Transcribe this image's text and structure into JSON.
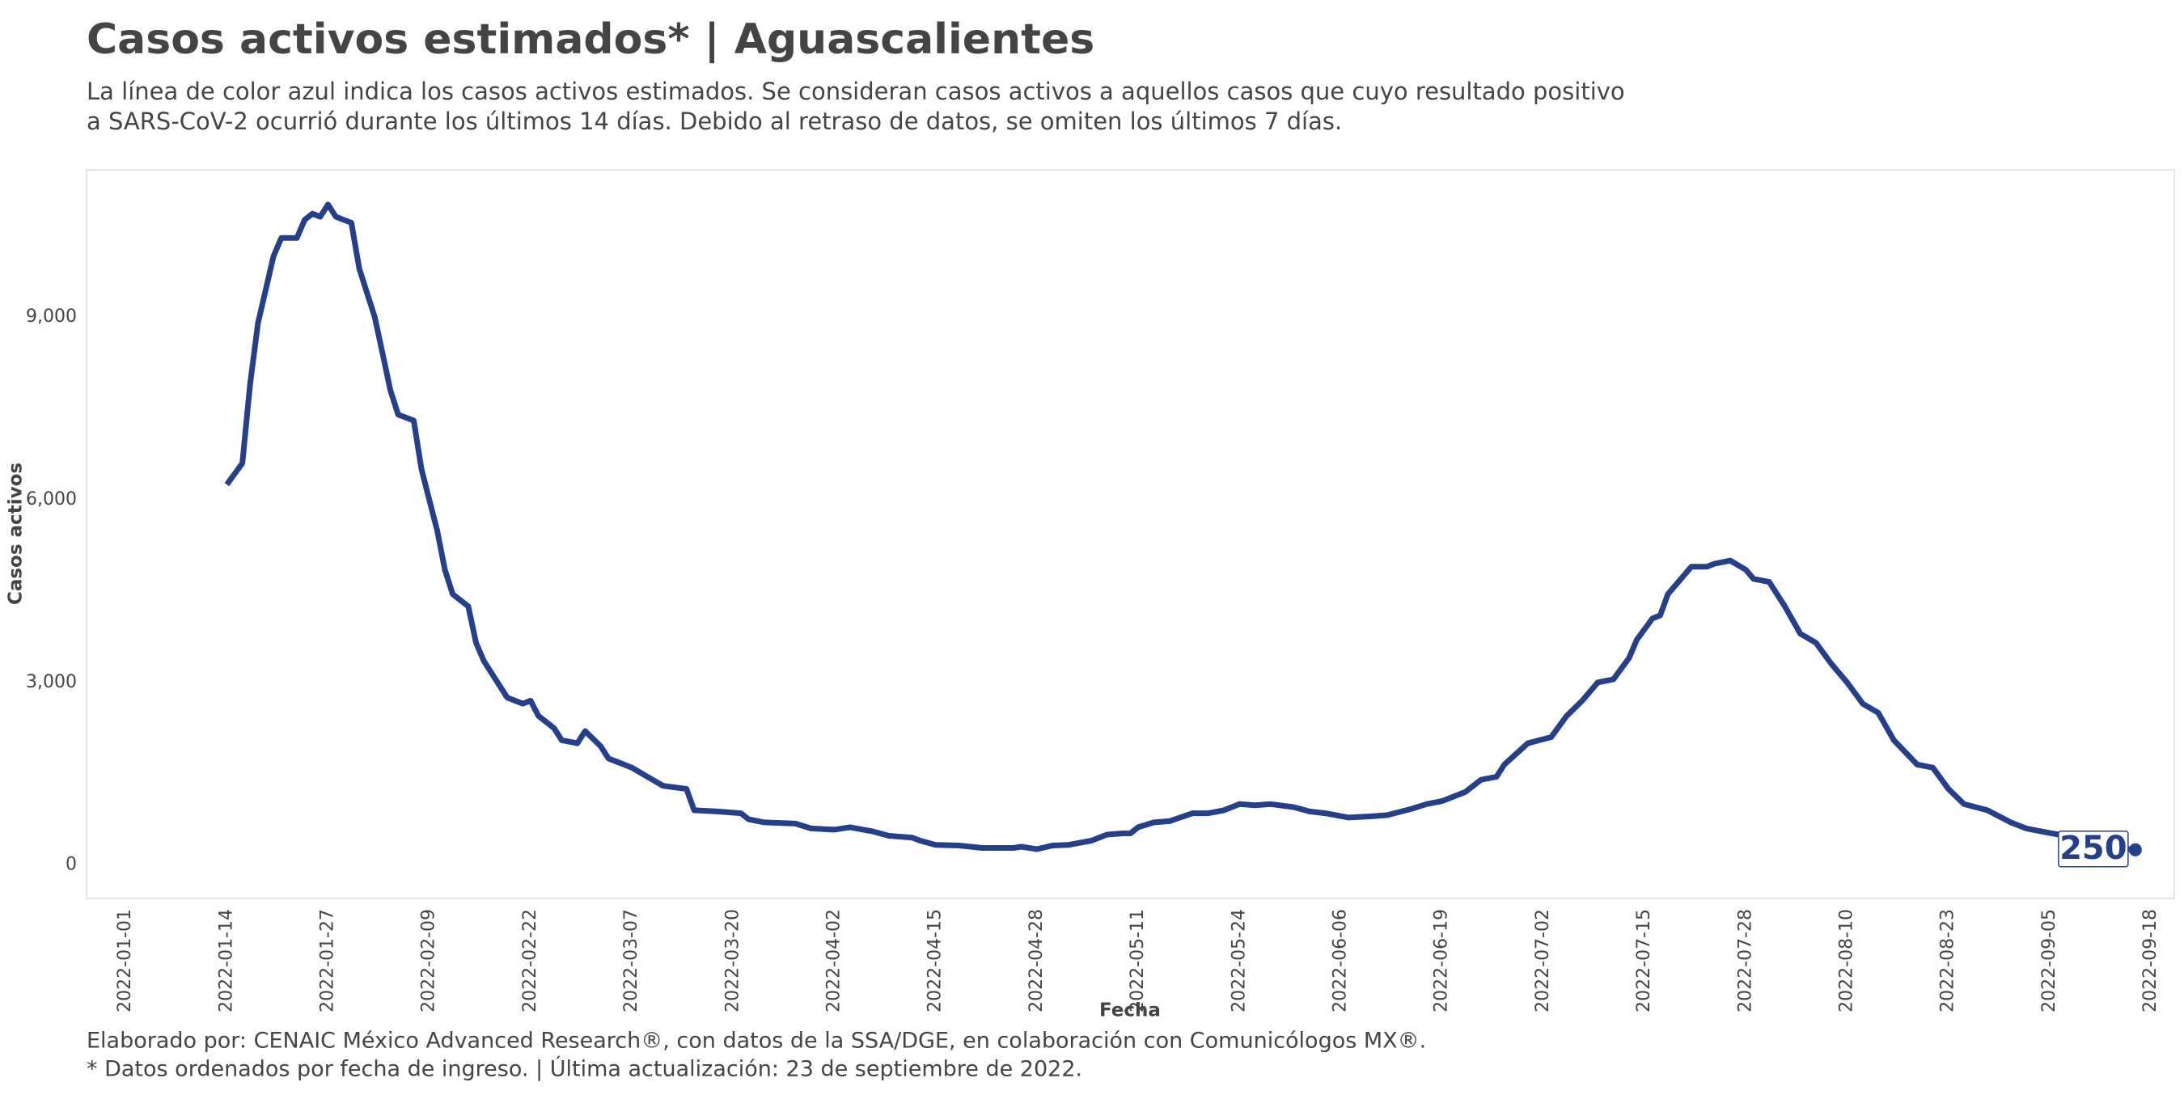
{
  "chart_data": {
    "type": "line",
    "title": "Casos activos estimados* | Aguascalientes",
    "subtitle": [
      "La línea de color azul indica los casos activos estimados. Se consideran casos activos a aquellos casos que cuyo resultado positivo",
      "a SARS-CoV-2 ocurrió durante los últimos 14 días. Debido al retraso de datos, se omiten los últimos 7 días."
    ],
    "caption": [
      "Elaborado por: CENAIC México Advanced Research®, con datos de la SSA/DGE, en colaboración con Comunicólogos MX®.",
      "* Datos ordenados por fecha de ingreso. | Última actualización: 23 de septiembre de 2022."
    ],
    "x_label": "Fecha",
    "y_label": "Casos activos",
    "x": [
      "2022-01-14",
      "2022-01-16",
      "2022-01-17",
      "2022-01-18",
      "2022-01-20",
      "2022-01-21",
      "2022-01-23",
      "2022-01-24",
      "2022-01-25",
      "2022-01-26",
      "2022-01-27",
      "2022-01-28",
      "2022-01-30",
      "2022-01-31",
      "2022-02-02",
      "2022-02-03",
      "2022-02-04",
      "2022-02-05",
      "2022-02-07",
      "2022-02-08",
      "2022-02-09",
      "2022-02-10",
      "2022-02-11",
      "2022-02-12",
      "2022-02-14",
      "2022-02-15",
      "2022-02-16",
      "2022-02-19",
      "2022-02-21",
      "2022-02-22",
      "2022-02-23",
      "2022-02-25",
      "2022-02-26",
      "2022-02-28",
      "2022-03-01",
      "2022-03-03",
      "2022-03-04",
      "2022-03-06",
      "2022-03-07",
      "2022-03-09",
      "2022-03-11",
      "2022-03-14",
      "2022-03-15",
      "2022-03-18",
      "2022-03-21",
      "2022-03-22",
      "2022-03-24",
      "2022-03-28",
      "2022-03-30",
      "2022-04-02",
      "2022-04-04",
      "2022-04-07",
      "2022-04-09",
      "2022-04-12",
      "2022-04-13",
      "2022-04-15",
      "2022-04-18",
      "2022-04-21",
      "2022-04-25",
      "2022-04-26",
      "2022-04-28",
      "2022-04-30",
      "2022-05-02",
      "2022-05-05",
      "2022-05-07",
      "2022-05-09",
      "2022-05-10",
      "2022-05-11",
      "2022-05-13",
      "2022-05-15",
      "2022-05-18",
      "2022-05-20",
      "2022-05-22",
      "2022-05-24",
      "2022-05-26",
      "2022-05-28",
      "2022-05-31",
      "2022-06-02",
      "2022-06-04",
      "2022-06-07",
      "2022-06-10",
      "2022-06-12",
      "2022-06-15",
      "2022-06-17",
      "2022-06-19",
      "2022-06-22",
      "2022-06-24",
      "2022-06-26",
      "2022-06-27",
      "2022-06-30",
      "2022-07-03",
      "2022-07-05",
      "2022-07-07",
      "2022-07-09",
      "2022-07-11",
      "2022-07-13",
      "2022-07-14",
      "2022-07-16",
      "2022-07-17",
      "2022-07-18",
      "2022-07-21",
      "2022-07-23",
      "2022-07-24",
      "2022-07-26",
      "2022-07-28",
      "2022-07-29",
      "2022-07-31",
      "2022-08-02",
      "2022-08-04",
      "2022-08-06",
      "2022-08-08",
      "2022-08-10",
      "2022-08-12",
      "2022-08-14",
      "2022-08-16",
      "2022-08-19",
      "2022-08-21",
      "2022-08-23",
      "2022-08-25",
      "2022-08-28",
      "2022-08-31",
      "2022-09-02",
      "2022-09-04",
      "2022-09-07",
      "2022-09-09",
      "2022-09-11",
      "2022-09-16"
    ],
    "series": [
      {
        "name": "Casos activos",
        "color": "#263f8a",
        "values": [
          6250,
          6600,
          7900,
          8900,
          10000,
          10300,
          10300,
          10600,
          10700,
          10650,
          10850,
          10650,
          10550,
          9800,
          9000,
          8400,
          7800,
          7400,
          7300,
          6500,
          6000,
          5500,
          4850,
          4450,
          4250,
          3650,
          3350,
          2750,
          2650,
          2700,
          2450,
          2250,
          2050,
          2000,
          2200,
          1950,
          1750,
          1650,
          1600,
          1450,
          1300,
          1250,
          900,
          880,
          850,
          750,
          700,
          680,
          600,
          580,
          620,
          550,
          480,
          450,
          400,
          330,
          320,
          280,
          280,
          300,
          260,
          320,
          330,
          400,
          500,
          520,
          520,
          620,
          700,
          720,
          850,
          850,
          900,
          1000,
          980,
          1000,
          950,
          880,
          850,
          780,
          800,
          820,
          920,
          1000,
          1050,
          1200,
          1400,
          1450,
          1650,
          2000,
          2100,
          2450,
          2700,
          3000,
          3050,
          3400,
          3700,
          4050,
          4100,
          4450,
          4900,
          4900,
          4950,
          5000,
          4850,
          4700,
          4650,
          4250,
          3800,
          3650,
          3300,
          3000,
          2650,
          2500,
          2050,
          1650,
          1600,
          1250,
          1000,
          900,
          700,
          600,
          550,
          480,
          400,
          300,
          250
        ]
      }
    ],
    "xlim": [
      "2021-12-27",
      "2022-09-21"
    ],
    "xticks": [
      "2022-01-01",
      "2022-01-14",
      "2022-01-27",
      "2022-02-09",
      "2022-02-22",
      "2022-03-07",
      "2022-03-20",
      "2022-04-02",
      "2022-04-15",
      "2022-04-28",
      "2022-05-11",
      "2022-05-24",
      "2022-06-06",
      "2022-06-19",
      "2022-07-02",
      "2022-07-15",
      "2022-07-28",
      "2022-08-10",
      "2022-08-23",
      "2022-09-05",
      "2022-09-18"
    ],
    "ylim": [
      -550,
      11420
    ],
    "yticks": [
      0,
      {
        "value": 3000,
        "label": "3,000"
      },
      {
        "value": 6000,
        "label": "6,000"
      },
      {
        "value": 9000,
        "label": "9,000"
      }
    ],
    "grid": false
  }
}
